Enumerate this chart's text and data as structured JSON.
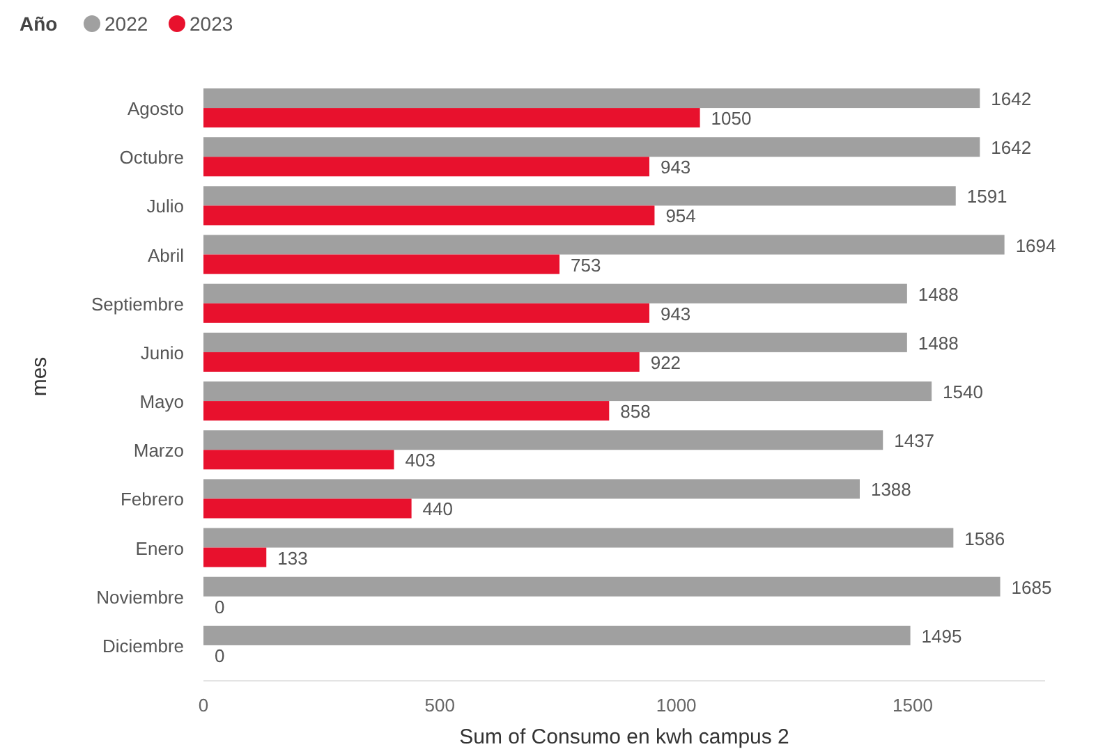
{
  "chart_data": {
    "type": "bar",
    "orientation": "horizontal",
    "xlabel": "Sum of Consumo en kwh campus 2",
    "ylabel": "mes",
    "legend_title": "Año",
    "legend": "top left",
    "data_labels": true,
    "grid": false,
    "categories": [
      "Agosto",
      "Octubre",
      "Julio",
      "Abril",
      "Septiembre",
      "Junio",
      "Mayo",
      "Marzo",
      "Febrero",
      "Enero",
      "Noviembre",
      "Diciembre"
    ],
    "xlim": [
      0,
      1780
    ],
    "xticks": [
      0,
      500,
      1000,
      1500
    ],
    "series": [
      {
        "name": "2022",
        "color": "#a0a0a0",
        "values": [
          1642,
          1642,
          1591,
          1694,
          1488,
          1488,
          1540,
          1437,
          1388,
          1586,
          1685,
          1495
        ]
      },
      {
        "name": "2023",
        "color": "#e8112d",
        "values": [
          1050,
          943,
          954,
          753,
          943,
          922,
          858,
          403,
          440,
          133,
          0,
          0
        ]
      }
    ]
  }
}
